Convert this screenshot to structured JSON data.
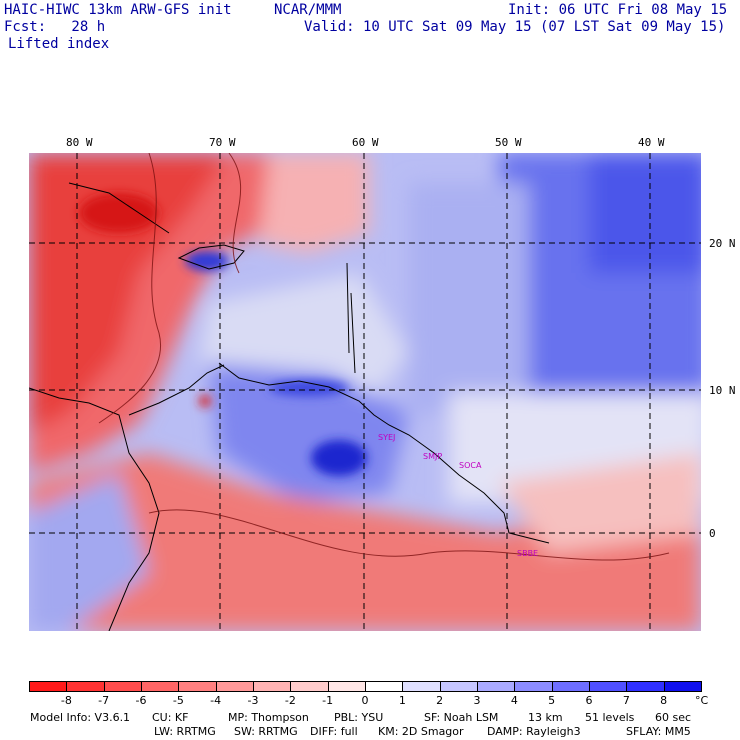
{
  "header": {
    "model": "HAIC-HIWC 13km ARW-GFS init",
    "org": "NCAR/MMM",
    "init": "Init: 06 UTC Fri 08 May 15",
    "fcst": "Fcst:   28 h",
    "valid": "Valid: 10 UTC Sat 09 May 15 (07 LST Sat 09 May 15)",
    "field": "Lifted index"
  },
  "axes": {
    "lon_labels": [
      "80 W",
      "70 W",
      "60 W",
      "50 W",
      "40 W"
    ],
    "lat_labels": [
      "20 N",
      "10 N",
      "0"
    ]
  },
  "stations": [
    "SYEJ",
    "SMJP",
    "SOCA",
    "SBBE"
  ],
  "colorbar": {
    "labels": [
      "-8",
      "-7",
      "-6",
      "-5",
      "-4",
      "-3",
      "-2",
      "-1",
      "0",
      "1",
      "2",
      "3",
      "4",
      "5",
      "6",
      "7",
      "8"
    ],
    "unit": "°C",
    "colors": [
      "#ff1a1a",
      "#ff3333",
      "#ff4d4d",
      "#ff6666",
      "#ff8080",
      "#ff9999",
      "#ffb3b3",
      "#ffcccc",
      "#ffe6e6",
      "#ffffff",
      "#e0e0ff",
      "#c6c6ff",
      "#aaaaff",
      "#8c8cff",
      "#6e6eff",
      "#5050ff",
      "#3030ff",
      "#1010ee"
    ]
  },
  "footer": {
    "line1": [
      "Model Info: V3.6.1",
      "CU: KF",
      "MP: Thompson",
      "PBL: YSU",
      "SF: Noah LSM",
      "13 km",
      "51 levels",
      "60 sec"
    ],
    "line2": [
      "LW: RRTMG",
      "SW: RRTMG",
      "DIFF: full",
      "KM: 2D Smagor",
      "DAMP: Rayleigh3",
      "SFLAY: MM5"
    ]
  }
}
